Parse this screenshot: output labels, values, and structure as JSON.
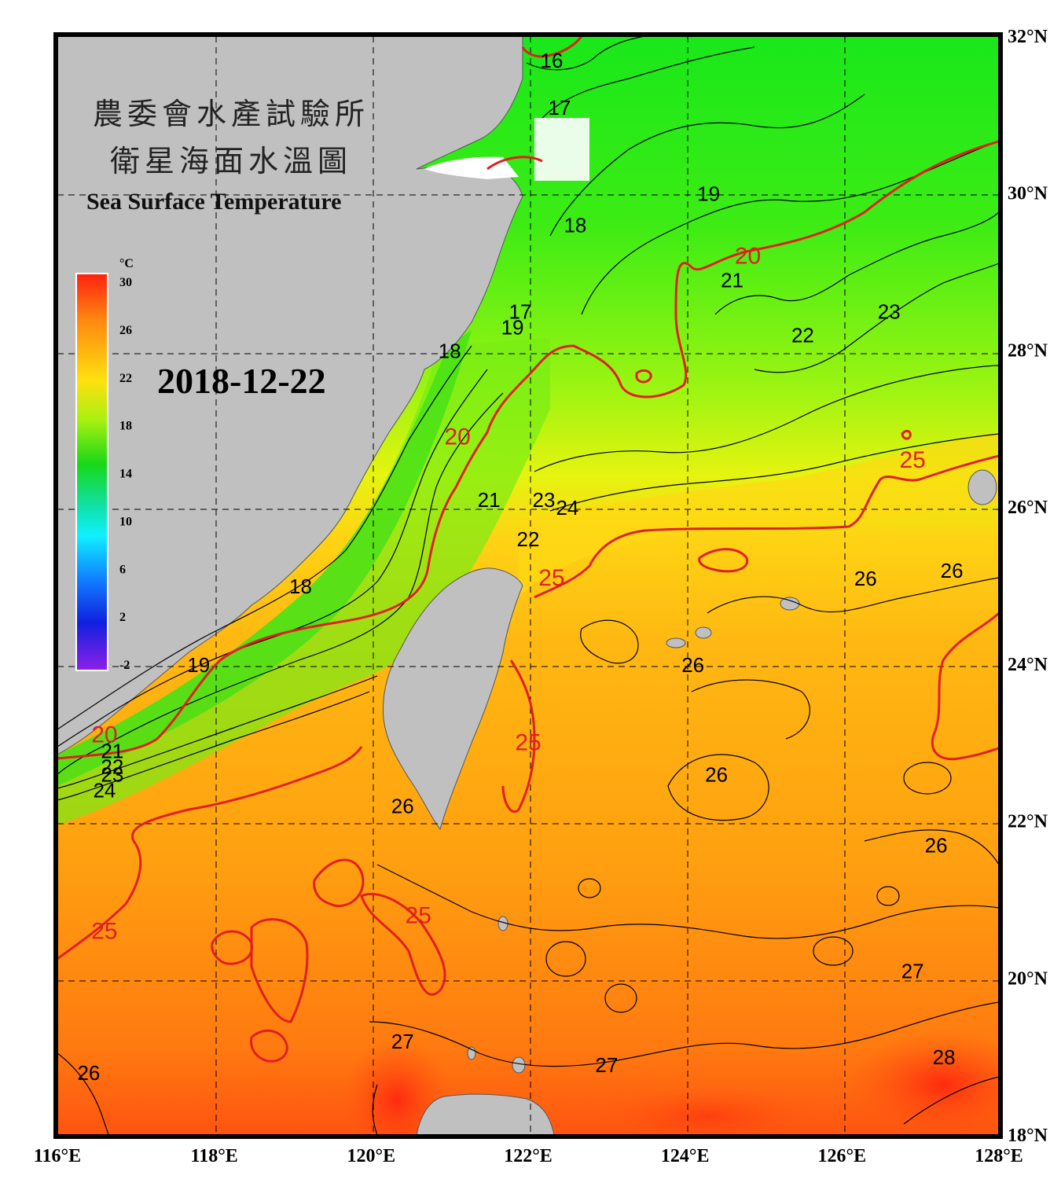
{
  "title": {
    "cn_line1": "農委會水產試驗所",
    "cn_line2": "衛星海面水溫圖",
    "en": "Sea Surface Temperature"
  },
  "date": "2018-12-22",
  "colorbar": {
    "unit": "°C",
    "ticks": [
      "30",
      "26",
      "22",
      "18",
      "14",
      "10",
      "6",
      "2",
      "-2"
    ],
    "colors": [
      "#ff3010",
      "#ff8a10",
      "#ffd010",
      "#c8ff10",
      "#20e020",
      "#10e0a0",
      "#10e8ff",
      "#1080ff",
      "#1030e0",
      "#8020e0"
    ]
  },
  "axes": {
    "lon_labels": [
      "116°E",
      "118°E",
      "120°E",
      "122°E",
      "124°E",
      "126°E",
      "128°E"
    ],
    "lat_labels": [
      "32°N",
      "30°N",
      "28°N",
      "26°N",
      "24°N",
      "22°N",
      "20°N",
      "18°N"
    ]
  },
  "contour_labels": [
    {
      "text": "16",
      "lon": 122.3,
      "lat": 31.6
    },
    {
      "text": "17",
      "lon": 122.4,
      "lat": 31.0
    },
    {
      "text": "18",
      "lon": 122.6,
      "lat": 29.5
    },
    {
      "text": "19",
      "lon": 124.3,
      "lat": 29.9
    },
    {
      "text": "21",
      "lon": 124.6,
      "lat": 28.8
    },
    {
      "text": "22",
      "lon": 125.5,
      "lat": 28.1
    },
    {
      "text": "23",
      "lon": 126.6,
      "lat": 28.4
    },
    {
      "text": "19",
      "lon": 121.8,
      "lat": 28.2
    },
    {
      "text": "17",
      "lon": 121.9,
      "lat": 28.4
    },
    {
      "text": "18",
      "lon": 121.0,
      "lat": 27.9
    },
    {
      "text": "21",
      "lon": 121.5,
      "lat": 26.0
    },
    {
      "text": "23",
      "lon": 122.2,
      "lat": 26.0
    },
    {
      "text": "24",
      "lon": 122.5,
      "lat": 25.9
    },
    {
      "text": "22",
      "lon": 122.0,
      "lat": 25.5
    },
    {
      "text": "18",
      "lon": 119.1,
      "lat": 24.9
    },
    {
      "text": "19",
      "lon": 117.8,
      "lat": 23.9
    },
    {
      "text": "21",
      "lon": 116.7,
      "lat": 22.8
    },
    {
      "text": "22",
      "lon": 116.7,
      "lat": 22.6
    },
    {
      "text": "23",
      "lon": 116.7,
      "lat": 22.5
    },
    {
      "text": "24",
      "lon": 116.6,
      "lat": 22.3
    },
    {
      "text": "26",
      "lon": 126.3,
      "lat": 25.0
    },
    {
      "text": "26",
      "lon": 127.4,
      "lat": 25.1
    },
    {
      "text": "26",
      "lon": 124.1,
      "lat": 23.9
    },
    {
      "text": "26",
      "lon": 124.4,
      "lat": 22.5
    },
    {
      "text": "26",
      "lon": 120.4,
      "lat": 22.1
    },
    {
      "text": "26",
      "lon": 127.2,
      "lat": 21.6
    },
    {
      "text": "27",
      "lon": 120.4,
      "lat": 19.1
    },
    {
      "text": "27",
      "lon": 123.0,
      "lat": 18.8
    },
    {
      "text": "27",
      "lon": 126.9,
      "lat": 20.0
    },
    {
      "text": "28",
      "lon": 127.3,
      "lat": 18.9
    },
    {
      "text": "26",
      "lon": 116.4,
      "lat": 18.7
    }
  ],
  "red_contour_labels": [
    {
      "text": "20",
      "lon": 124.8,
      "lat": 29.1
    },
    {
      "text": "20",
      "lon": 121.1,
      "lat": 26.8
    },
    {
      "text": "25",
      "lon": 126.9,
      "lat": 26.5
    },
    {
      "text": "25",
      "lon": 122.3,
      "lat": 25.0
    },
    {
      "text": "25",
      "lon": 122.0,
      "lat": 22.9
    },
    {
      "text": "25",
      "lon": 120.6,
      "lat": 20.7
    },
    {
      "text": "25",
      "lon": 116.6,
      "lat": 20.5
    },
    {
      "text": "20",
      "lon": 116.6,
      "lat": 23.0
    }
  ]
}
